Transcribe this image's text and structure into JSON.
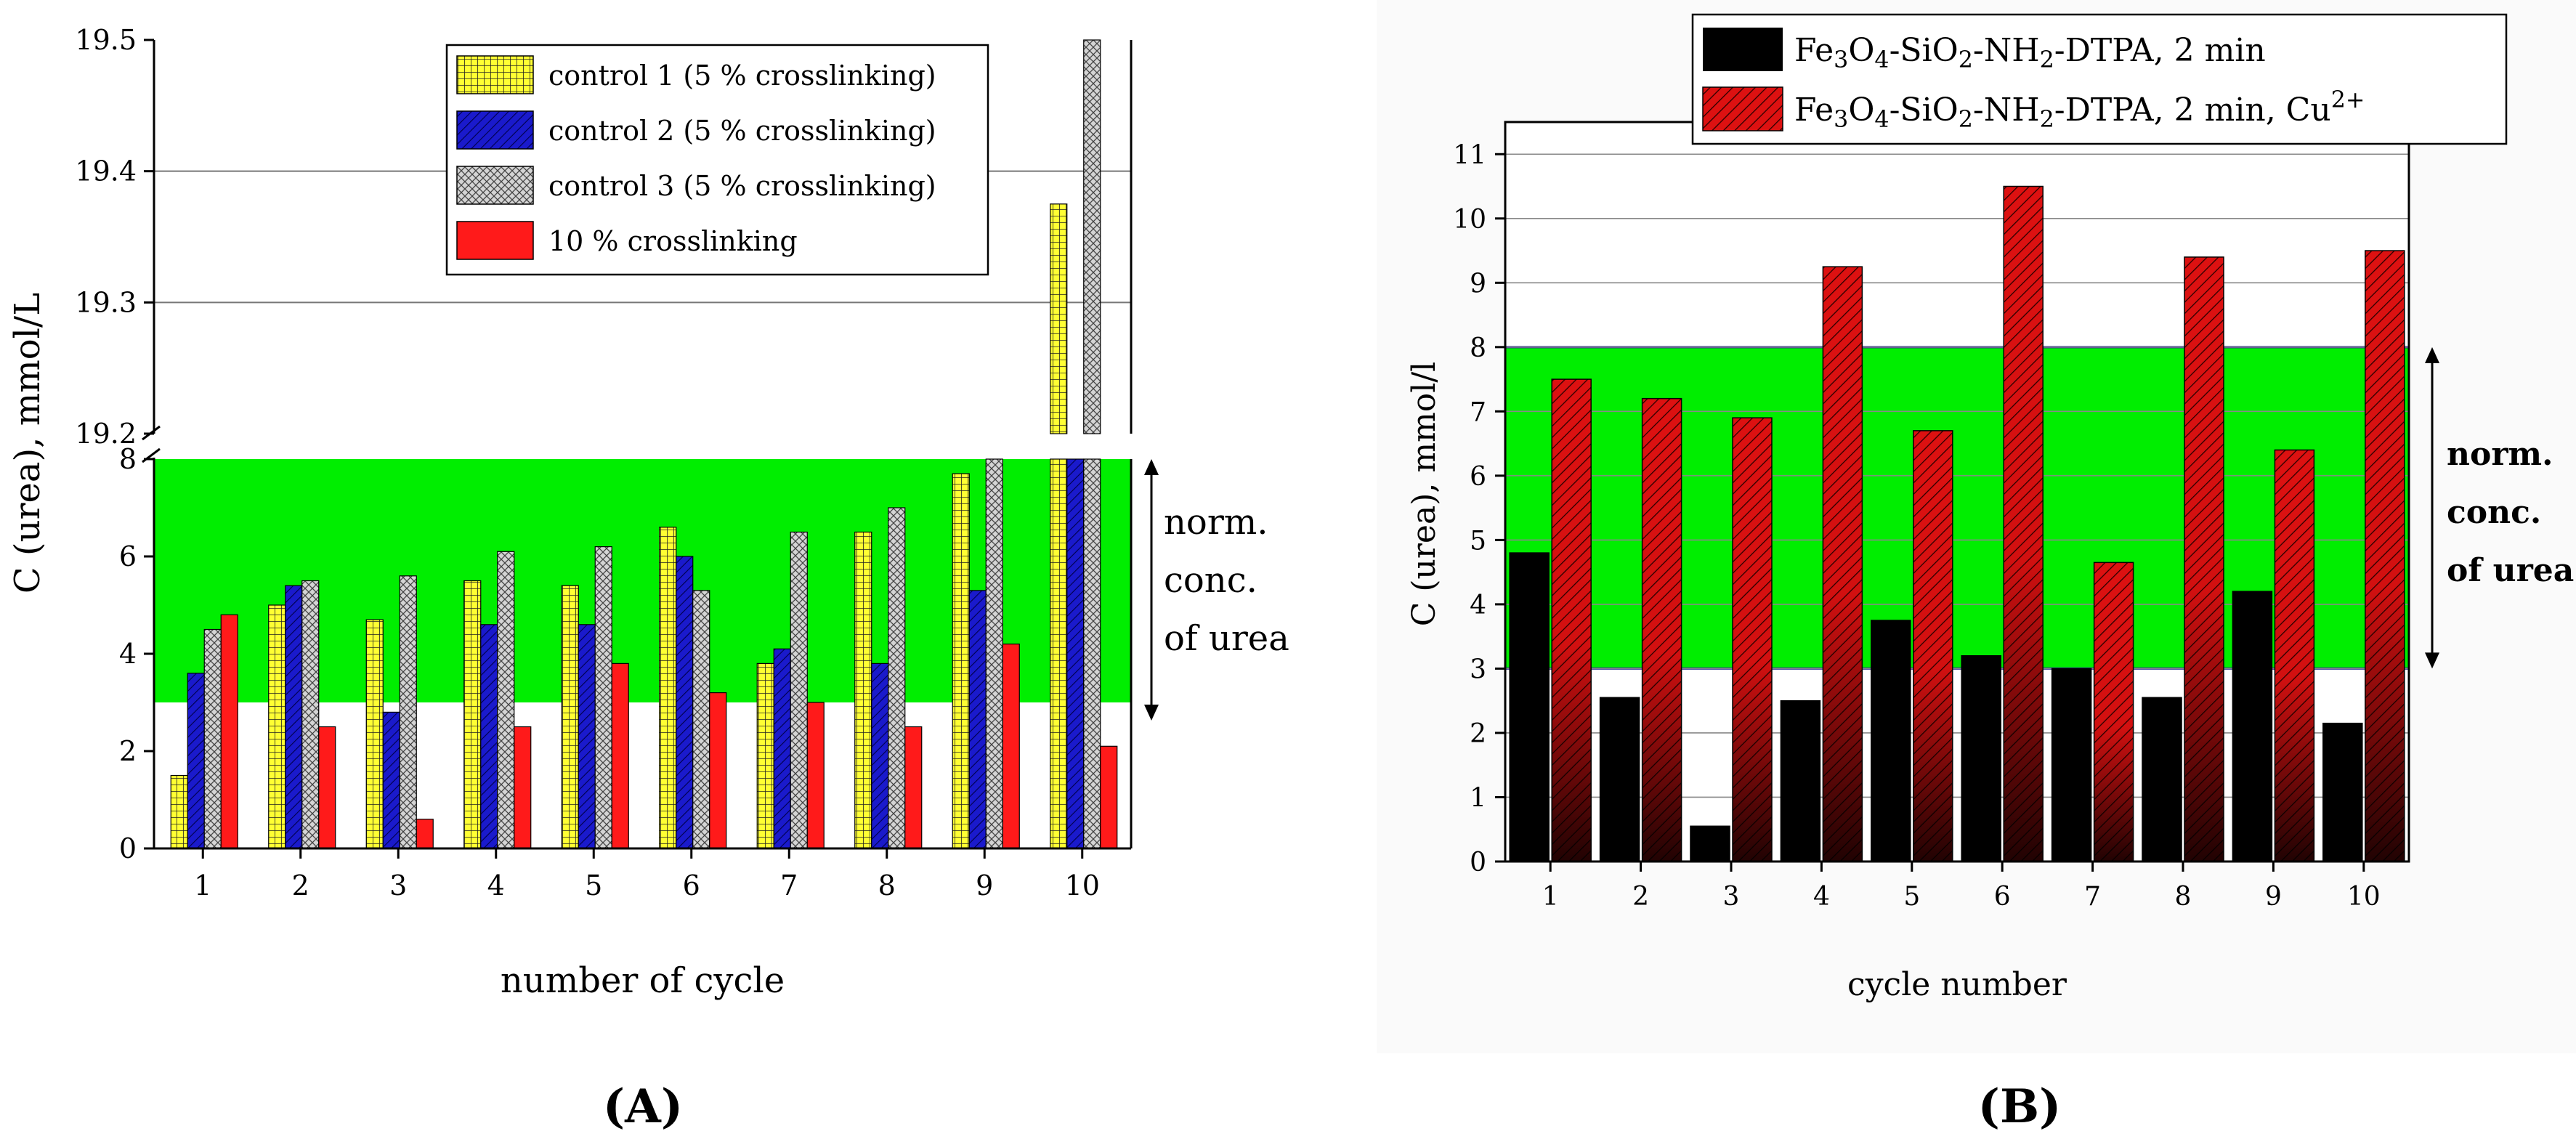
{
  "chart_data": [
    {
      "panel_label": "A",
      "type": "bar",
      "xlabel": "number of cycle",
      "ylabel": "C (urea), mmol/L",
      "categories": [
        "1",
        "2",
        "3",
        "4",
        "5",
        "6",
        "7",
        "8",
        "9",
        "10"
      ],
      "y_lower": {
        "range": [
          0,
          8
        ],
        "ticks": [
          "0",
          "2",
          "4",
          "6",
          "8"
        ]
      },
      "y_upper": {
        "range": [
          19.2,
          19.5
        ],
        "ticks": [
          "19.2",
          "19.3",
          "19.4",
          "19.5"
        ]
      },
      "axis_break": true,
      "normal_range": [
        3,
        8
      ],
      "norm_annotation": [
        "norm.",
        "conc.",
        "of urea"
      ],
      "legend_position": "top-right",
      "series": [
        {
          "name": "control 1 (5 % crosslinking)",
          "color": "#ffff33",
          "pattern": "grid",
          "values": [
            1.5,
            5.0,
            4.7,
            5.5,
            5.4,
            6.6,
            3.8,
            6.5,
            7.7,
            19.375
          ]
        },
        {
          "name": "control 2 (5 % crosslinking)",
          "color": "#1a1acc",
          "pattern": "hatch",
          "values": [
            3.6,
            5.4,
            2.8,
            4.6,
            4.6,
            6.0,
            4.1,
            3.8,
            5.3,
            8.0
          ]
        },
        {
          "name": "control 3 (5 % crosslinking)",
          "color": "#d4d4d4",
          "pattern": "cross",
          "values": [
            4.5,
            5.5,
            5.6,
            6.1,
            6.2,
            5.3,
            6.5,
            7.0,
            8.2,
            19.5
          ]
        },
        {
          "name": "10 % crosslinking",
          "color": "#ff1a1a",
          "pattern": "solid",
          "values": [
            4.8,
            2.5,
            0.6,
            2.5,
            3.8,
            3.2,
            3.0,
            2.5,
            4.2,
            2.1
          ]
        }
      ]
    },
    {
      "panel_label": "B",
      "type": "bar",
      "xlabel": "cycle number",
      "ylabel": "C (urea), mmol/l",
      "categories": [
        "1",
        "2",
        "3",
        "4",
        "5",
        "6",
        "7",
        "8",
        "9",
        "10"
      ],
      "ylim": [
        0,
        11.5
      ],
      "yticks": [
        "0",
        "1",
        "2",
        "3",
        "4",
        "5",
        "6",
        "7",
        "8",
        "9",
        "10",
        "11"
      ],
      "normal_range": [
        3,
        8
      ],
      "norm_annotation": [
        "norm.",
        "conc.",
        "of urea"
      ],
      "legend_position": "top",
      "series": [
        {
          "name": "Fe3O4-SiO2-NH2-DTPA, 2 min",
          "color": "#000000",
          "values": [
            4.8,
            2.55,
            0.55,
            2.5,
            3.75,
            3.2,
            3.0,
            2.55,
            4.2,
            2.15
          ]
        },
        {
          "name": "Fe3O4-SiO2-NH2-DTPA, 2 min, Cu2+",
          "color": "#dd1111",
          "values": [
            7.5,
            7.2,
            6.9,
            9.25,
            6.7,
            10.5,
            4.65,
            9.4,
            6.4,
            9.5
          ]
        }
      ]
    }
  ]
}
